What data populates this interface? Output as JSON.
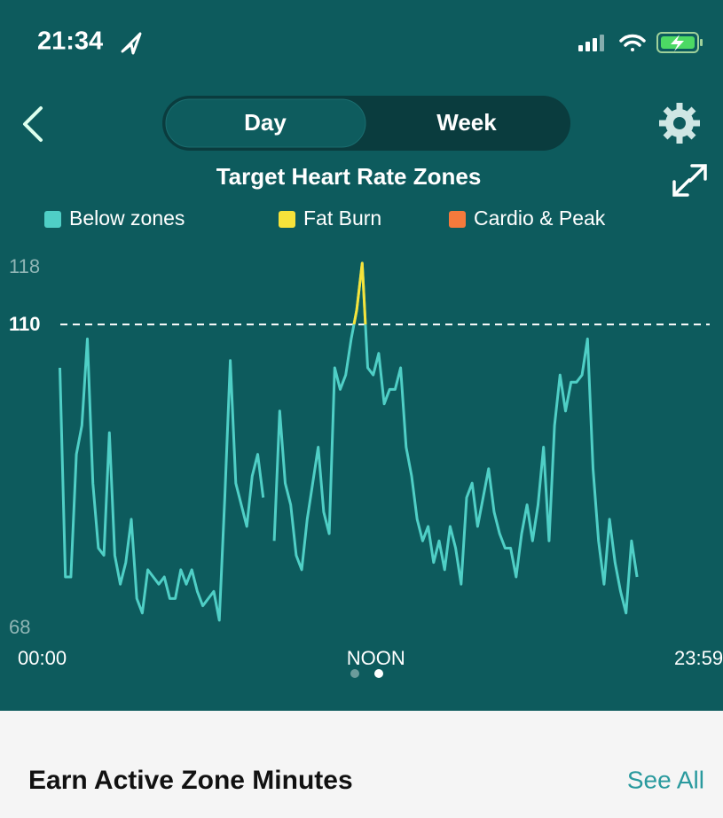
{
  "status_bar": {
    "time": "21:34"
  },
  "tabs": [
    "Day",
    "Week"
  ],
  "chart_data": {
    "type": "line",
    "title": "Target Heart Rate Zones",
    "series": [
      {
        "name": "Below zones",
        "color": "#4fcfc6",
        "x": [
          30,
          42,
          54,
          66,
          78,
          90,
          102,
          114,
          126,
          138,
          150,
          162,
          174,
          186,
          198,
          210,
          222,
          234,
          246,
          258,
          270,
          282,
          294,
          306,
          318,
          330,
          342,
          354,
          366,
          378,
          390,
          402,
          414,
          426,
          438,
          450,
          462,
          474,
          486,
          498,
          510,
          522,
          534,
          546,
          558,
          570,
          582,
          594,
          606,
          618,
          630,
          642,
          654,
          666,
          678,
          690,
          702,
          714,
          726,
          738,
          750,
          762,
          774,
          786,
          798,
          810,
          822,
          834,
          846,
          858,
          870,
          882,
          894,
          906,
          918,
          930,
          942,
          954,
          966,
          978,
          990,
          1002,
          1014,
          1026,
          1038,
          1050,
          1062,
          1074,
          1086,
          1098,
          1110,
          1122,
          1134,
          1146,
          1158,
          1170,
          1182,
          1194,
          1206,
          1218,
          1230,
          1242,
          1254,
          1266,
          1278,
          1290
        ],
        "values": [
          104,
          75,
          75,
          92,
          96,
          108,
          88,
          79,
          78,
          95,
          78,
          74,
          77,
          83,
          72,
          70,
          76,
          75,
          74,
          75,
          72,
          72,
          76,
          74,
          76,
          73,
          71,
          72,
          73,
          69,
          86,
          105,
          88,
          85,
          82,
          89,
          92,
          86,
          null,
          80,
          98,
          88,
          85,
          78,
          76,
          83,
          88,
          93,
          84,
          81,
          104,
          101,
          103,
          108,
          112,
          118.5,
          104,
          103,
          106,
          99,
          101,
          101,
          104,
          93,
          89,
          83,
          80,
          82,
          77,
          80,
          76,
          82,
          79,
          74,
          86,
          88,
          82,
          86,
          90,
          84,
          81,
          79,
          79,
          75,
          81,
          85,
          80,
          85,
          93,
          80,
          96,
          103,
          98,
          102,
          102,
          103,
          108,
          90,
          80,
          74,
          83,
          77,
          73,
          70,
          80,
          75
        ]
      }
    ],
    "zones": [
      {
        "name": "Fat Burn",
        "color": "#f6e33a"
      },
      {
        "name": "Cardio & Peak",
        "color": "#f57a3c"
      }
    ],
    "threshold": 110,
    "xlim": [
      0,
      1439
    ],
    "xticks": [
      {
        "value": 0,
        "label": "00:00"
      },
      {
        "value": 720,
        "label": "NOON"
      },
      {
        "value": 1439,
        "label": "23:59"
      }
    ],
    "ylim": [
      68,
      118
    ],
    "yticks": [
      68,
      110,
      118
    ]
  },
  "section": {
    "title": "Earn Active Zone Minutes",
    "link": "See All"
  }
}
